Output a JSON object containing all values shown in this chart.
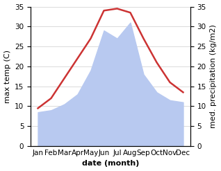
{
  "months": [
    "Jan",
    "Feb",
    "Mar",
    "Apr",
    "May",
    "Jun",
    "Jul",
    "Aug",
    "Sep",
    "Oct",
    "Nov",
    "Dec"
  ],
  "precipitation": [
    8.5,
    9.0,
    10.5,
    13.0,
    19.0,
    29.0,
    27.0,
    31.0,
    18.0,
    13.5,
    11.5,
    11.0
  ],
  "max_temp": [
    9.5,
    12.0,
    17.0,
    22.0,
    27.0,
    34.0,
    34.5,
    33.5,
    27.0,
    21.0,
    16.0,
    13.5
  ],
  "temp_color": "#cc3333",
  "precip_color": "#b8c9f0",
  "ylim_left": [
    0,
    35
  ],
  "ylim_right": [
    0,
    35
  ],
  "yticks": [
    0,
    5,
    10,
    15,
    20,
    25,
    30,
    35
  ],
  "ylabel_left": "max temp (C)",
  "ylabel_right": "med. precipitation (kg/m2)",
  "xlabel": "date (month)",
  "temp_linewidth": 1.8,
  "bg_color": "#ffffff",
  "grid_color": "#cccccc",
  "label_fontsize": 8,
  "tick_fontsize": 7.5
}
